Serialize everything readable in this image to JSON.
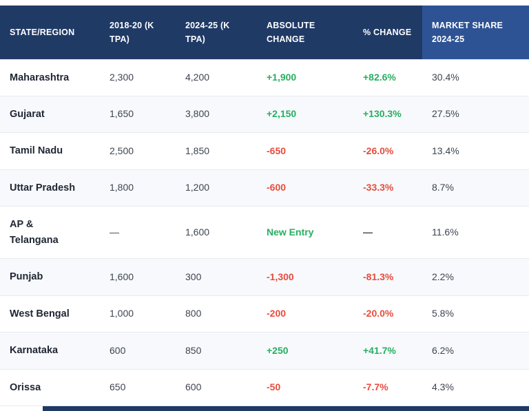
{
  "chart_data": {
    "type": "table",
    "columns": [
      "STATE/REGION",
      "2018-20 (K TPA)",
      "2024-25 (K TPA)",
      "ABSOLUTE CHANGE",
      "% CHANGE",
      "MARKET SHARE 2024-25"
    ],
    "rows": [
      {
        "state": "Maharashtra",
        "y2018": "2,300",
        "y2024": "4,200",
        "abs_change": "+1,900",
        "abs_color": "positive",
        "pct_change": "+82.6%",
        "pct_color": "positive",
        "market_share": "30.4%"
      },
      {
        "state": "Gujarat",
        "y2018": "1,650",
        "y2024": "3,800",
        "abs_change": "+2,150",
        "abs_color": "positive",
        "pct_change": "+130.3%",
        "pct_color": "positive",
        "market_share": "27.5%"
      },
      {
        "state": "Tamil Nadu",
        "y2018": "2,500",
        "y2024": "1,850",
        "abs_change": "-650",
        "abs_color": "negative",
        "pct_change": "-26.0%",
        "pct_color": "negative",
        "market_share": "13.4%"
      },
      {
        "state": "Uttar Pradesh",
        "y2018": "1,800",
        "y2024": "1,200",
        "abs_change": "-600",
        "abs_color": "negative",
        "pct_change": "-33.3%",
        "pct_color": "negative",
        "market_share": "8.7%"
      },
      {
        "state": "AP & Telangana",
        "y2018": "—",
        "y2024": "1,600",
        "abs_change": "New Entry",
        "abs_color": "positive",
        "pct_change": "—",
        "pct_color": "neutral",
        "market_share": "11.6%"
      },
      {
        "state": "Punjab",
        "y2018": "1,600",
        "y2024": "300",
        "abs_change": "-1,300",
        "abs_color": "negative",
        "pct_change": "-81.3%",
        "pct_color": "negative",
        "market_share": "2.2%"
      },
      {
        "state": "West Bengal",
        "y2018": "1,000",
        "y2024": "800",
        "abs_change": "-200",
        "abs_color": "negative",
        "pct_change": "-20.0%",
        "pct_color": "negative",
        "market_share": "5.8%"
      },
      {
        "state": "Karnataka",
        "y2018": "600",
        "y2024": "850",
        "abs_change": "+250",
        "abs_color": "positive",
        "pct_change": "+41.7%",
        "pct_color": "positive",
        "market_share": "6.2%"
      },
      {
        "state": "Orissa",
        "y2018": "650",
        "y2024": "600",
        "abs_change": "-50",
        "abs_color": "negative",
        "pct_change": "-7.7%",
        "pct_color": "negative",
        "market_share": "4.3%"
      }
    ],
    "layout": {
      "striped": true,
      "next_row_partially_visible": true
    }
  },
  "colors": {
    "positive": "#27ae60",
    "negative": "#e74c3c",
    "neutral": "#3d4451",
    "header_bg": "#203a66",
    "header_last_col_bg": "#2e5394",
    "stripe_bg": "#f7f9fc",
    "row_border": "#e8eaed"
  }
}
